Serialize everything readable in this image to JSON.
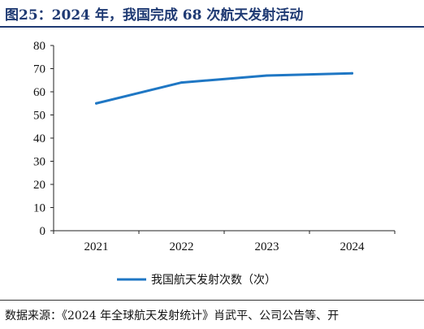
{
  "header": {
    "title": "图25：2024 年，我国完成 68 次航天发射活动"
  },
  "footer": {
    "source": "数据来源：《2024 年全球航天发射统计》肖武平、公司公告等、开"
  },
  "colors": {
    "title": "#1f3a73",
    "series": "#1f77c4"
  },
  "chart_data": {
    "type": "line",
    "x": [
      "2021",
      "2022",
      "2023",
      "2024"
    ],
    "series": [
      {
        "name": "我国航天发射次数（次）",
        "values": [
          55,
          64,
          67,
          68
        ]
      }
    ],
    "yticks": [
      "0",
      "10",
      "20",
      "30",
      "40",
      "50",
      "60",
      "70",
      "80"
    ],
    "ylim": [
      0,
      80
    ],
    "legend_position": "bottom",
    "grid": false
  }
}
